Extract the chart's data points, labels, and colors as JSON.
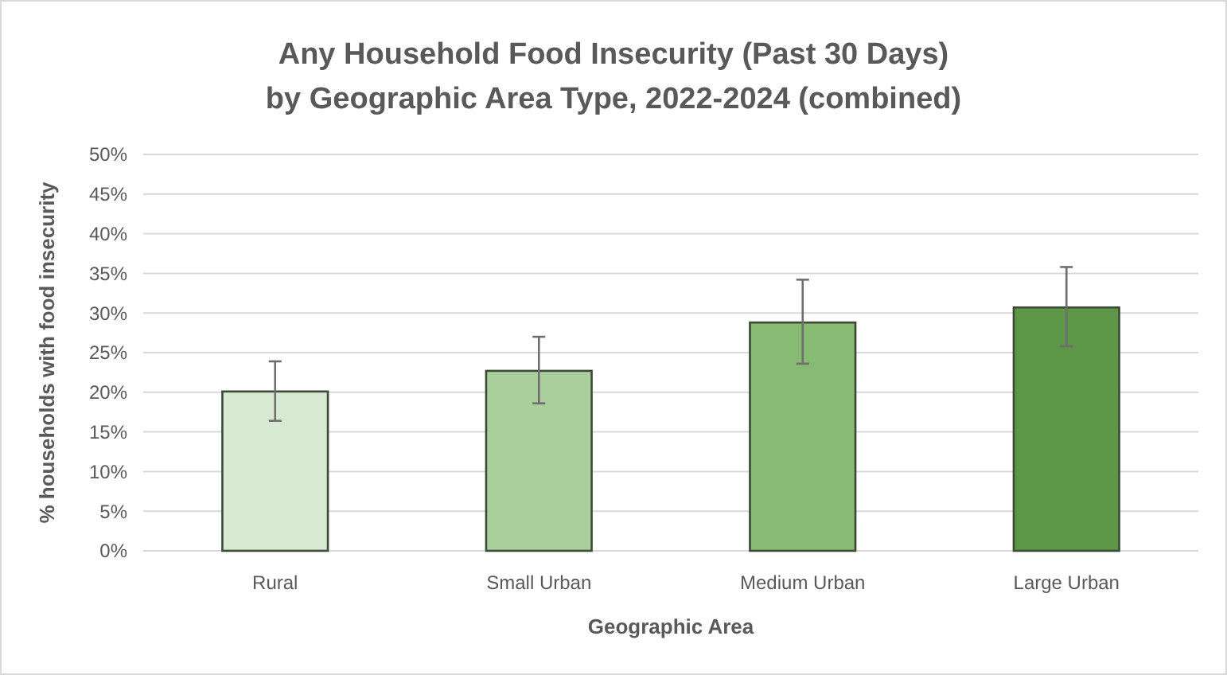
{
  "chart_data": {
    "type": "bar",
    "title": "Any Household Food Insecurity (Past 30 Days) by Geographic Area Type, 2022-2024 (combined)",
    "xlabel": "Geographic Area",
    "ylabel": "% households with food insecurity",
    "categories": [
      "Rural",
      "Small Urban",
      "Medium Urban",
      "Large Urban"
    ],
    "values": [
      20.1,
      22.7,
      28.8,
      30.7
    ],
    "colors": [
      "#d8e9d3",
      "#abcf9c",
      "#87ba73",
      "#5e9648"
    ],
    "errors": [
      [
        16.4,
        23.9
      ],
      [
        18.6,
        27.0
      ],
      [
        23.6,
        34.2
      ],
      [
        25.8,
        35.8
      ]
    ],
    "ylim": [
      0,
      50
    ],
    "yticks": [
      {
        "value": 0,
        "label": "0%"
      },
      {
        "value": 5,
        "label": "5%"
      },
      {
        "value": 10,
        "label": "10%"
      },
      {
        "value": 15,
        "label": "15%"
      },
      {
        "value": 20,
        "label": "20%"
      },
      {
        "value": 25,
        "label": "25%"
      },
      {
        "value": 30,
        "label": "30%"
      },
      {
        "value": 35,
        "label": "35%"
      },
      {
        "value": 40,
        "label": "40%"
      },
      {
        "value": 45,
        "label": "45%"
      },
      {
        "value": 50,
        "label": "50%"
      }
    ],
    "grid": "y"
  }
}
